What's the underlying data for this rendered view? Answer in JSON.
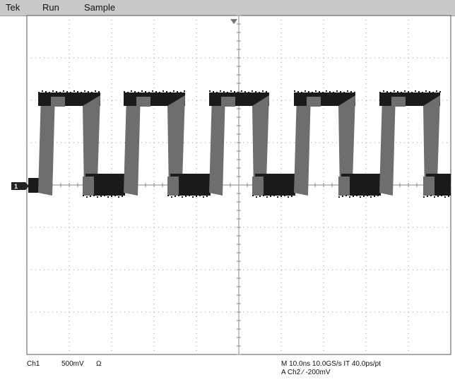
{
  "header": {
    "brand": "Tek",
    "mode": "Run",
    "acquisition": "Sample"
  },
  "ground_marker": "1",
  "trace_color": "#1a1a1a",
  "trace_fill_color": "#6e6e6e",
  "status": {
    "channel": "Ch1",
    "volts_per_div": "500mV",
    "impedance": "Ω",
    "timebase": "M 10.0ns 10.0GS/s IT 40.0ps/pt",
    "trigger": "A  Ch2  ∕  -200mV"
  }
}
